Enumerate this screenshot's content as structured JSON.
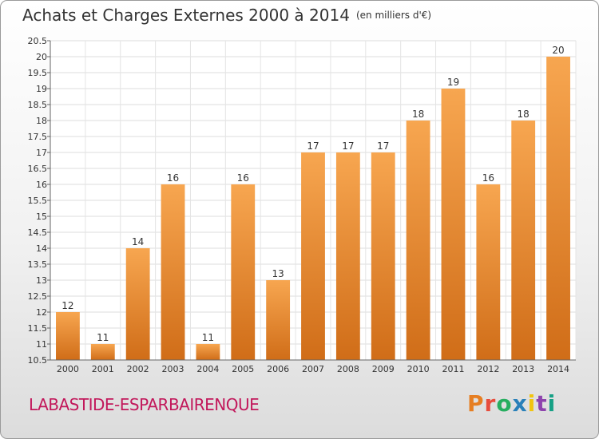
{
  "header": {
    "title": "Achats et Charges Externes 2000 à 2014",
    "unit": "(en milliers d'€)"
  },
  "footer": {
    "commune": "LABASTIDE-ESPARBAIRENQUE",
    "brand": "Proxiti"
  },
  "colors": {
    "bar_top": "#f7a650",
    "bar_bottom": "#d06d18",
    "commune": "#c2185b",
    "logo_letters": [
      "#e67e22",
      "#e74c3c",
      "#27ae60",
      "#2980b9",
      "#f1c40f",
      "#8e44ad",
      "#16a085"
    ]
  },
  "chart_data": {
    "type": "bar",
    "title": "Achats et Charges Externes 2000 à 2014",
    "subtitle": "(en milliers d'€)",
    "categories": [
      "2000",
      "2001",
      "2002",
      "2003",
      "2004",
      "2005",
      "2006",
      "2007",
      "2008",
      "2009",
      "2010",
      "2011",
      "2012",
      "2013",
      "2014"
    ],
    "values": [
      12,
      11,
      14,
      16,
      11,
      16,
      13,
      17,
      17,
      17,
      18,
      19,
      16,
      18,
      20
    ],
    "ylim": [
      10.5,
      20.5
    ],
    "yticks": [
      "10.5",
      "11",
      "11.5",
      "12",
      "12.5",
      "13",
      "13.5",
      "14",
      "14.5",
      "15",
      "15.5",
      "16",
      "16.5",
      "17",
      "17.5",
      "18",
      "18.5",
      "19",
      "19.5",
      "20",
      "20.5"
    ],
    "grid": true,
    "legend": "none"
  }
}
